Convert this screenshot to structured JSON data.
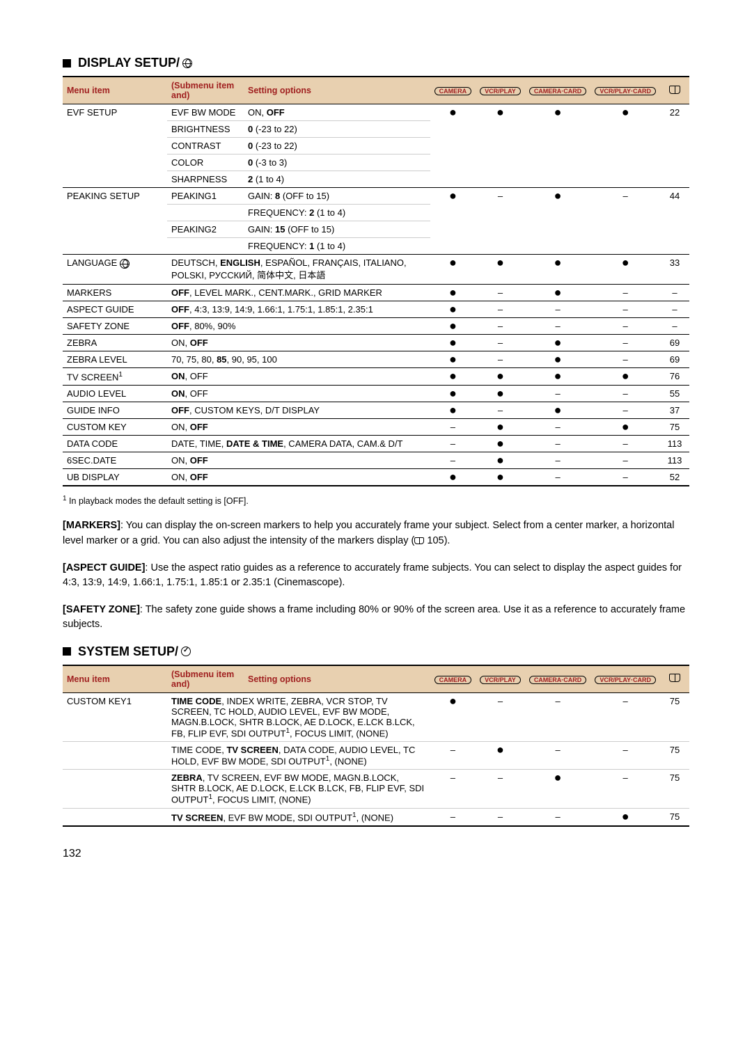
{
  "display": {
    "title": "DISPLAY SETUP/",
    "headers": {
      "menu": "Menu item",
      "sub": "(Submenu item and)",
      "opt": "Setting options",
      "modes": [
        "CAMERA",
        "VCR/PLAY",
        "CAMERA·CARD",
        "VCR/PLAY·CARD"
      ]
    },
    "rows": [
      {
        "menu": "EVF SETUP",
        "sub": "EVF BW MODE",
        "opt_pre": "ON, ",
        "opt_b": "OFF",
        "modes": [
          "●",
          "●",
          "●",
          "●"
        ],
        "page": "22",
        "first": true,
        "noborder": true
      },
      {
        "menu": "",
        "sub": "BRIGHTNESS",
        "opt_b": "0",
        "opt_post": " (-23 to 22)",
        "modes": [
          "",
          "",
          "",
          ""
        ],
        "page": "",
        "noborder": true
      },
      {
        "menu": "",
        "sub": "CONTRAST",
        "opt_b": "0",
        "opt_post": " (-23 to 22)",
        "modes": [
          "",
          "",
          "",
          ""
        ],
        "page": "",
        "noborder": true
      },
      {
        "menu": "",
        "sub": "COLOR",
        "opt_b": "0",
        "opt_post": " (-3 to 3)",
        "modes": [
          "",
          "",
          "",
          ""
        ],
        "page": "",
        "noborder": true
      },
      {
        "menu": "",
        "sub": "SHARPNESS",
        "opt_b": "2",
        "opt_post": " (1 to 4)",
        "modes": [
          "",
          "",
          "",
          ""
        ],
        "page": "",
        "groupend": true
      },
      {
        "menu": "PEAKING SETUP",
        "sub": "PEAKING1",
        "opt_pre": "GAIN: ",
        "opt_b": "8",
        "opt_post": " (OFF to 15)",
        "modes": [
          "●",
          "–",
          "●",
          "–"
        ],
        "page": "44",
        "first": true,
        "noborder": true
      },
      {
        "menu": "",
        "sub": "",
        "opt_pre": "FREQUENCY: ",
        "opt_b": "2",
        "opt_post": " (1 to 4)",
        "modes": [
          "",
          "",
          "",
          ""
        ],
        "page": "",
        "noborder": true
      },
      {
        "menu": "",
        "sub": "PEAKING2",
        "opt_pre": "GAIN: ",
        "opt_b": "15",
        "opt_post": " (OFF to 15)",
        "modes": [
          "",
          "",
          "",
          ""
        ],
        "page": "",
        "noborder": true
      },
      {
        "menu": "",
        "sub": "",
        "opt_pre": "FREQUENCY: ",
        "opt_b": "1",
        "opt_post": " (1 to 4)",
        "modes": [
          "",
          "",
          "",
          ""
        ],
        "page": "",
        "groupend": true
      },
      {
        "menu": "LANGUAGE ",
        "globe": true,
        "colspan": true,
        "opt_html": "DEUTSCH, <b>ENGLISH</b>, ESPAÑOL, FRANÇAIS, ITALIANO, POLSKI, РУССКИЙ, 简体中文, 日本語",
        "modes": [
          "●",
          "●",
          "●",
          "●"
        ],
        "page": "33",
        "groupend": true
      },
      {
        "menu": "MARKERS",
        "colspan": true,
        "opt_html": "<b>OFF</b>, LEVEL MARK., CENT.MARK., GRID MARKER",
        "modes": [
          "●",
          "–",
          "●",
          "–"
        ],
        "page": "–",
        "groupend": true
      },
      {
        "menu": "ASPECT GUIDE",
        "colspan": true,
        "opt_html": "<b>OFF</b>, 4:3, 13:9, 14:9, 1.66:1, 1.75:1, 1.85:1, 2.35:1",
        "modes": [
          "●",
          "–",
          "–",
          "–"
        ],
        "page": "–",
        "groupend": true
      },
      {
        "menu": "SAFETY ZONE",
        "colspan": true,
        "opt_html": "<b>OFF</b>, 80%, 90%",
        "modes": [
          "●",
          "–",
          "–",
          "–"
        ],
        "page": "–",
        "groupend": true
      },
      {
        "menu": "ZEBRA",
        "colspan": true,
        "opt_html": "ON, <b>OFF</b>",
        "modes": [
          "●",
          "–",
          "●",
          "–"
        ],
        "page": "69",
        "groupend": true
      },
      {
        "menu": "ZEBRA LEVEL",
        "colspan": true,
        "opt_html": "70, 75, 80, <b>85</b>, 90, 95, 100",
        "modes": [
          "●",
          "–",
          "●",
          "–"
        ],
        "page": "69",
        "groupend": true
      },
      {
        "menu": "TV SCREEN",
        "sup": "1",
        "colspan": true,
        "opt_html": "<b>ON</b>, OFF",
        "modes": [
          "●",
          "●",
          "●",
          "●"
        ],
        "page": "76",
        "groupend": true
      },
      {
        "menu": "AUDIO LEVEL",
        "colspan": true,
        "opt_html": "<b>ON</b>, OFF",
        "modes": [
          "●",
          "●",
          "–",
          "–"
        ],
        "page": "55",
        "groupend": true
      },
      {
        "menu": "GUIDE INFO",
        "colspan": true,
        "opt_html": "<b>OFF</b>, CUSTOM KEYS, D/T DISPLAY",
        "modes": [
          "●",
          "–",
          "●",
          "–"
        ],
        "page": "37",
        "groupend": true
      },
      {
        "menu": "CUSTOM KEY",
        "colspan": true,
        "opt_html": "ON, <b>OFF</b>",
        "modes": [
          "–",
          "●",
          "–",
          "●"
        ],
        "page": "75",
        "groupend": true
      },
      {
        "menu": "DATA CODE",
        "colspan": true,
        "opt_html": "DATE, TIME, <b>DATE & TIME</b>, CAMERA DATA, CAM.& D/T",
        "modes": [
          "–",
          "●",
          "–",
          "–"
        ],
        "page": "113",
        "groupend": true
      },
      {
        "menu": "6SEC.DATE",
        "colspan": true,
        "opt_html": "ON, <b>OFF</b>",
        "modes": [
          "–",
          "●",
          "–",
          "–"
        ],
        "page": "113",
        "groupend": true
      },
      {
        "menu": "UB DISPLAY",
        "colspan": true,
        "opt_html": "ON, <b>OFF</b>",
        "modes": [
          "●",
          "●",
          "–",
          "–"
        ],
        "page": "52"
      }
    ]
  },
  "footnote1": "In playback modes the default setting is [OFF].",
  "paragraphs": {
    "markers": {
      "label": "[MARKERS]",
      "text": ": You can display the on-screen markers to help you accurately frame your subject. Select from a center marker, a horizontal level marker or a grid. You can also adjust the intensity of the markers display (",
      "ref": "105",
      "tail": ")."
    },
    "aspect": {
      "label": "[ASPECT GUIDE]",
      "text": ": Use the aspect ratio guides as a reference to accurately frame subjects. You can select to display the aspect guides for 4:3, 13:9, 14:9, 1.66:1, 1.75:1, 1.85:1 or 2.35:1 (Cinemascope)."
    },
    "safety": {
      "label": "[SAFETY ZONE]",
      "text": ": The safety zone guide shows a frame including 80% or 90% of the screen area. Use it as a reference to accurately frame subjects."
    }
  },
  "system": {
    "title": "SYSTEM SETUP/",
    "headers": {
      "menu": "Menu item",
      "sub": "(Submenu item and)",
      "opt": "Setting options",
      "modes": [
        "CAMERA",
        "VCR/PLAY",
        "CAMERA·CARD",
        "VCR/PLAY·CARD"
      ]
    },
    "rows": [
      {
        "menu": "CUSTOM KEY1",
        "opt_html": "<b>TIME CODE</b>, INDEX WRITE, ZEBRA, VCR STOP, TV SCREEN, TC HOLD, AUDIO LEVEL, EVF BW MODE, MAGN.B.LOCK, SHTR B.LOCK, AE D.LOCK, E.LCK B.LCK, FB, FLIP EVF, SDI OUTPUT<span class='sup'>1</span>, FOCUS LIMIT, (NONE)",
        "modes": [
          "●",
          "–",
          "–",
          "–"
        ],
        "page": "75",
        "first": true
      },
      {
        "menu": "",
        "opt_html": "TIME CODE, <b>TV SCREEN</b>, DATA CODE, AUDIO LEVEL, TC HOLD, EVF BW MODE, SDI OUTPUT<span class='sup'>1</span>, (NONE)",
        "modes": [
          "–",
          "●",
          "–",
          "–"
        ],
        "page": "75"
      },
      {
        "menu": "",
        "opt_html": "<b>ZEBRA</b>, TV SCREEN, EVF BW MODE, MAGN.B.LOCK, SHTR B.LOCK, AE D.LOCK, E.LCK B.LCK, FB, FLIP EVF, SDI OUTPUT<span class='sup'>1</span>, FOCUS LIMIT, (NONE)",
        "modes": [
          "–",
          "–",
          "●",
          "–"
        ],
        "page": "75"
      },
      {
        "menu": "",
        "opt_html": "<b>TV SCREEN</b>, EVF BW MODE, SDI OUTPUT<span class='sup'>1</span>, (NONE)",
        "modes": [
          "–",
          "–",
          "–",
          "●"
        ],
        "page": "75"
      }
    ]
  },
  "pageNumber": "132"
}
